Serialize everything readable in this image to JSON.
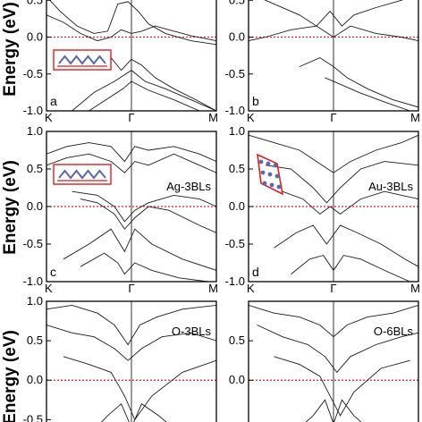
{
  "figure": {
    "y_axis_label": "Energy (eV)"
  },
  "chart_data": [
    {
      "type": "line",
      "panel": "a",
      "structure_label": "",
      "x_ticks": [
        "K",
        "Γ",
        "M"
      ],
      "y_ticks": [
        "-1.0",
        "-0.5",
        "0.0",
        "0.5"
      ],
      "ylim": [
        -1.0,
        0.6
      ],
      "fermi_level": 0.0,
      "inset": "side-view structure",
      "series": [
        {
          "x": [
            0,
            0.08,
            0.18,
            0.28,
            0.36,
            0.42,
            0.48,
            0.54,
            0.6,
            0.7,
            0.85,
            1.0
          ],
          "y": [
            0.55,
            0.35,
            0.15,
            0.05,
            0.08,
            0.45,
            0.48,
            0.35,
            0.18,
            0.05,
            -0.05,
            -0.1
          ]
        },
        {
          "x": [
            0,
            0.1,
            0.2,
            0.3,
            0.38,
            0.44,
            0.5,
            0.56,
            0.64,
            0.72,
            0.85,
            1.0
          ],
          "y": [
            0.3,
            0.2,
            0.05,
            -0.05,
            0.0,
            0.1,
            0.05,
            0.08,
            0.15,
            0.1,
            0.02,
            -0.05
          ]
        },
        {
          "x": [
            0.3,
            0.38,
            0.44,
            0.5,
            0.56,
            0.64,
            0.75,
            0.88,
            1.0
          ],
          "y": [
            -0.3,
            -0.28,
            -0.45,
            -0.3,
            -0.38,
            -0.55,
            -0.7,
            -0.85,
            -1.0
          ]
        },
        {
          "x": [
            0.15,
            0.28,
            0.4,
            0.5,
            0.58,
            0.7,
            0.85,
            1.0
          ],
          "y": [
            -1.0,
            -0.75,
            -0.6,
            -0.45,
            -0.6,
            -0.7,
            -0.85,
            -1.0
          ]
        },
        {
          "x": [
            0.25,
            0.35,
            0.45,
            0.5,
            0.6,
            0.75,
            0.9
          ],
          "y": [
            -1.0,
            -0.85,
            -0.7,
            -0.6,
            -0.72,
            -0.85,
            -1.0
          ]
        }
      ]
    },
    {
      "type": "line",
      "panel": "b",
      "structure_label": "",
      "x_ticks": [
        "K",
        "Γ",
        "M"
      ],
      "y_ticks": [
        "-1.0",
        "-0.5",
        "0.0",
        "0.5"
      ],
      "ylim": [
        -1.0,
        0.6
      ],
      "fermi_level": 0.0,
      "series": [
        {
          "x": [
            0,
            0.15,
            0.3,
            0.4,
            0.48,
            0.55,
            0.62,
            0.75,
            0.9,
            1.0
          ],
          "y": [
            0.6,
            0.45,
            0.3,
            0.15,
            0.35,
            0.15,
            0.3,
            0.4,
            0.5,
            0.6
          ]
        },
        {
          "x": [
            0,
            0.1,
            0.25,
            0.4,
            0.5,
            0.6,
            0.75,
            0.9,
            1.0
          ],
          "y": [
            -0.05,
            0.0,
            0.1,
            0.15,
            0.0,
            0.15,
            0.05,
            0.0,
            -0.05
          ]
        },
        {
          "x": [
            0.3,
            0.42,
            0.5,
            0.58,
            0.7,
            0.85,
            1.0
          ],
          "y": [
            -0.4,
            -0.28,
            -0.4,
            -0.55,
            -0.7,
            -0.85,
            -0.95
          ]
        },
        {
          "x": [
            0.45,
            0.55,
            0.65,
            0.8,
            0.95
          ],
          "y": [
            -0.55,
            -0.65,
            -0.75,
            -0.88,
            -1.0
          ]
        }
      ]
    },
    {
      "type": "line",
      "panel": "c",
      "structure_label": "Ag-3BLs",
      "x_ticks": [
        "K",
        "Γ",
        "M"
      ],
      "y_ticks": [
        "-1.0",
        "-0.5",
        "0.0",
        "0.5",
        "1.0"
      ],
      "ylim": [
        -1.0,
        1.0
      ],
      "fermi_level": 0.0,
      "inset": "side-view structure",
      "series": [
        {
          "x": [
            0,
            0.12,
            0.25,
            0.38,
            0.46,
            0.52,
            0.6,
            0.75,
            0.9,
            1.0
          ],
          "y": [
            0.7,
            0.8,
            0.85,
            0.8,
            0.6,
            0.8,
            0.75,
            0.8,
            0.7,
            0.6
          ]
        },
        {
          "x": [
            0,
            0.12,
            0.25,
            0.38,
            0.46,
            0.52,
            0.6,
            0.75,
            0.9,
            1.0
          ],
          "y": [
            0.55,
            0.65,
            0.7,
            0.6,
            0.45,
            0.6,
            0.55,
            0.7,
            0.55,
            0.45
          ]
        },
        {
          "x": [
            0.15,
            0.3,
            0.4,
            0.46,
            0.52,
            0.6,
            0.75,
            0.9,
            1.0
          ],
          "y": [
            0.2,
            0.15,
            0.0,
            -0.2,
            -0.05,
            0.05,
            0.15,
            0.1,
            0.0
          ]
        },
        {
          "x": [
            0.2,
            0.3,
            0.4,
            0.46,
            0.52,
            0.6,
            0.72,
            0.9,
            1.0
          ],
          "y": [
            0.1,
            0.05,
            -0.1,
            -0.3,
            -0.15,
            0.0,
            -0.05,
            -0.25,
            -0.35
          ]
        },
        {
          "x": [
            0.1,
            0.25,
            0.38,
            0.46,
            0.52,
            0.62,
            0.8,
            1.0
          ],
          "y": [
            -0.7,
            -0.5,
            -0.3,
            -0.6,
            -0.3,
            -0.5,
            -0.7,
            -0.85
          ]
        },
        {
          "x": [
            0.2,
            0.34,
            0.42,
            0.46,
            0.52,
            0.62,
            0.78,
            0.95
          ],
          "y": [
            -0.8,
            -0.62,
            -0.75,
            -0.9,
            -0.75,
            -0.85,
            -0.95,
            -1.0
          ]
        }
      ]
    },
    {
      "type": "line",
      "panel": "d",
      "structure_label": "Au-3BLs",
      "x_ticks": [
        "K",
        "Γ",
        "M"
      ],
      "y_ticks": [
        "-1.0",
        "-0.5",
        "0.0",
        "0.5",
        "1.0"
      ],
      "ylim": [
        -1.0,
        1.0
      ],
      "fermi_level": 0.0,
      "inset": "top-view structure",
      "series": [
        {
          "x": [
            0,
            0.15,
            0.3,
            0.4,
            0.5,
            0.6,
            0.75,
            0.9,
            1.0
          ],
          "y": [
            0.95,
            0.85,
            0.75,
            0.6,
            0.45,
            0.6,
            0.75,
            0.85,
            0.95
          ]
        },
        {
          "x": [
            0.1,
            0.25,
            0.38,
            0.46,
            0.54,
            0.66,
            0.8,
            1.0
          ],
          "y": [
            0.55,
            0.5,
            0.25,
            0.05,
            0.25,
            0.5,
            0.6,
            0.55
          ]
        },
        {
          "x": [
            0.2,
            0.32,
            0.42,
            0.48,
            0.54,
            0.66,
            0.8,
            1.0
          ],
          "y": [
            0.2,
            0.1,
            -0.1,
            0.0,
            -0.1,
            0.1,
            0.2,
            0.1
          ]
        },
        {
          "x": [
            0.15,
            0.28,
            0.38,
            0.46,
            0.54,
            0.64,
            0.78,
            0.92,
            1.0
          ],
          "y": [
            -0.55,
            -0.35,
            -0.25,
            -0.5,
            -0.25,
            -0.35,
            -0.5,
            -0.7,
            -0.8
          ]
        },
        {
          "x": [
            0.25,
            0.36,
            0.44,
            0.5,
            0.56,
            0.66,
            0.8,
            0.95
          ],
          "y": [
            -0.9,
            -0.7,
            -0.65,
            -0.85,
            -0.65,
            -0.7,
            -0.85,
            -1.0
          ]
        }
      ]
    },
    {
      "type": "line",
      "panel": "e",
      "structure_label": "O-3BLs",
      "x_ticks": [],
      "y_ticks": [
        "-0.5",
        "0.0",
        "0.5",
        "1.0"
      ],
      "ylim": [
        -0.7,
        1.0
      ],
      "fermi_level": 0.0,
      "series": [
        {
          "x": [
            0,
            0.15,
            0.3,
            0.4,
            0.48,
            0.55,
            0.65,
            0.8,
            1.0
          ],
          "y": [
            0.9,
            0.95,
            0.85,
            0.7,
            0.45,
            0.7,
            0.8,
            0.9,
            0.95
          ]
        },
        {
          "x": [
            0,
            0.15,
            0.28,
            0.4,
            0.48,
            0.56,
            0.68,
            0.85,
            1.0
          ],
          "y": [
            0.7,
            0.6,
            0.55,
            0.4,
            0.25,
            0.4,
            0.55,
            0.6,
            0.5
          ]
        },
        {
          "x": [
            0.1,
            0.25,
            0.38,
            0.46,
            0.52,
            0.62,
            0.8,
            1.0
          ],
          "y": [
            0.3,
            0.2,
            0.1,
            -0.2,
            -0.5,
            -0.2,
            0.1,
            0.25
          ]
        },
        {
          "x": [
            0.25,
            0.36,
            0.44,
            0.5,
            0.56,
            0.66,
            0.8
          ],
          "y": [
            -0.7,
            -0.45,
            -0.3,
            -0.6,
            -0.3,
            -0.45,
            -0.7
          ]
        }
      ]
    },
    {
      "type": "line",
      "panel": "f",
      "structure_label": "O-6BLs",
      "x_ticks": [],
      "y_ticks": [
        "0.0",
        "0.5"
      ],
      "ylim": [
        -0.7,
        1.0
      ],
      "fermi_level": 0.0,
      "series": [
        {
          "x": [
            0,
            0.15,
            0.3,
            0.42,
            0.5,
            0.58,
            0.7,
            0.85,
            1.0
          ],
          "y": [
            0.95,
            0.85,
            0.8,
            0.7,
            0.55,
            0.7,
            0.8,
            0.85,
            0.95
          ]
        },
        {
          "x": [
            0.05,
            0.2,
            0.35,
            0.45,
            0.52,
            0.6,
            0.75,
            0.9,
            1.0
          ],
          "y": [
            0.7,
            0.55,
            0.45,
            0.3,
            0.1,
            0.3,
            0.45,
            0.55,
            0.6
          ]
        },
        {
          "x": [
            0.15,
            0.3,
            0.42,
            0.48,
            0.54,
            0.62,
            0.78,
            0.95
          ],
          "y": [
            0.3,
            0.2,
            0.05,
            -0.2,
            -0.45,
            -0.15,
            0.15,
            0.25
          ]
        },
        {
          "x": [
            0.25,
            0.38,
            0.45,
            0.5,
            0.55,
            0.62,
            0.75
          ],
          "y": [
            -0.7,
            -0.45,
            -0.25,
            -0.55,
            -0.25,
            -0.45,
            -0.7
          ]
        }
      ]
    }
  ]
}
